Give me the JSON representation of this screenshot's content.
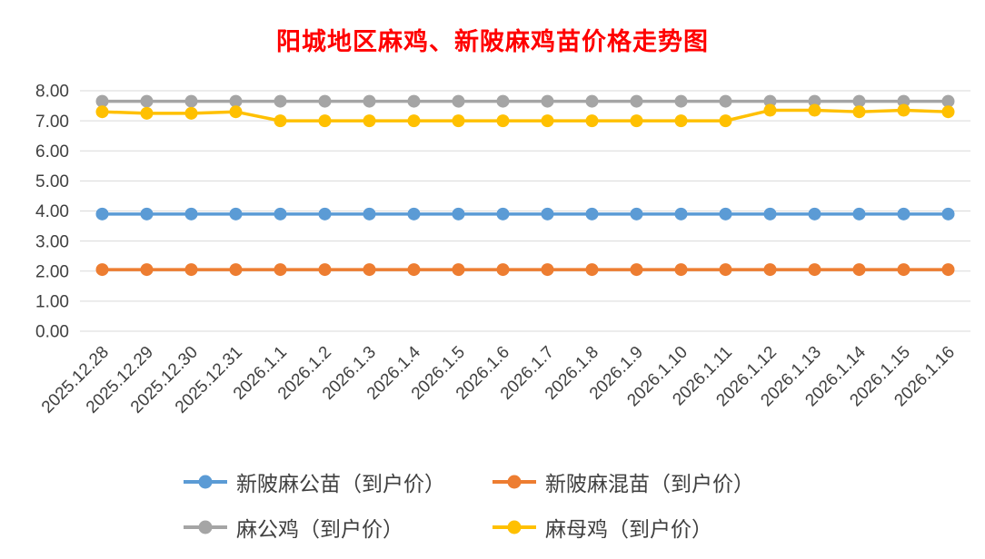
{
  "chart_data": {
    "type": "line",
    "title": "阳城地区麻鸡、新陂麻鸡苗价格走势图",
    "title_color": "#FF0000",
    "categories": [
      "2025.12.28",
      "2025.12.29",
      "2025.12.30",
      "2025.12.31",
      "2026.1.1",
      "2026.1.2",
      "2026.1.3",
      "2026.1.4",
      "2026.1.5",
      "2026.1.6",
      "2026.1.7",
      "2026.1.8",
      "2026.1.9",
      "2026.1.10",
      "2026.1.11",
      "2026.1.12",
      "2026.1.13",
      "2026.1.14",
      "2026.1.15",
      "2026.1.16"
    ],
    "series": [
      {
        "name": "新陂麻公苗（到户价）",
        "color": "#5B9BD5",
        "values": [
          3.9,
          3.9,
          3.9,
          3.9,
          3.9,
          3.9,
          3.9,
          3.9,
          3.9,
          3.9,
          3.9,
          3.9,
          3.9,
          3.9,
          3.9,
          3.9,
          3.9,
          3.9,
          3.9,
          3.9
        ]
      },
      {
        "name": "新陂麻混苗（到户价）",
        "color": "#ED7D31",
        "values": [
          2.05,
          2.05,
          2.05,
          2.05,
          2.05,
          2.05,
          2.05,
          2.05,
          2.05,
          2.05,
          2.05,
          2.05,
          2.05,
          2.05,
          2.05,
          2.05,
          2.05,
          2.05,
          2.05,
          2.05
        ]
      },
      {
        "name": "麻公鸡（到户价）",
        "color": "#A5A5A5",
        "values": [
          7.65,
          7.65,
          7.65,
          7.65,
          7.65,
          7.65,
          7.65,
          7.65,
          7.65,
          7.65,
          7.65,
          7.65,
          7.65,
          7.65,
          7.65,
          7.65,
          7.65,
          7.65,
          7.65,
          7.65
        ]
      },
      {
        "name": "麻母鸡（到户价）",
        "color": "#FFC000",
        "values": [
          7.3,
          7.25,
          7.25,
          7.3,
          7.0,
          7.0,
          7.0,
          7.0,
          7.0,
          7.0,
          7.0,
          7.0,
          7.0,
          7.0,
          7.0,
          7.35,
          7.35,
          7.3,
          7.35,
          7.3
        ]
      }
    ],
    "ylim": [
      0,
      8
    ],
    "yticks": [
      "0.00",
      "1.00",
      "2.00",
      "3.00",
      "4.00",
      "5.00",
      "6.00",
      "7.00",
      "8.00"
    ],
    "xlabel": "",
    "ylabel": "",
    "grid": true,
    "grid_color": "#D9D9D9",
    "axis_label_color": "#404040",
    "legend_position": "bottom",
    "background": "#FFFFFF"
  }
}
